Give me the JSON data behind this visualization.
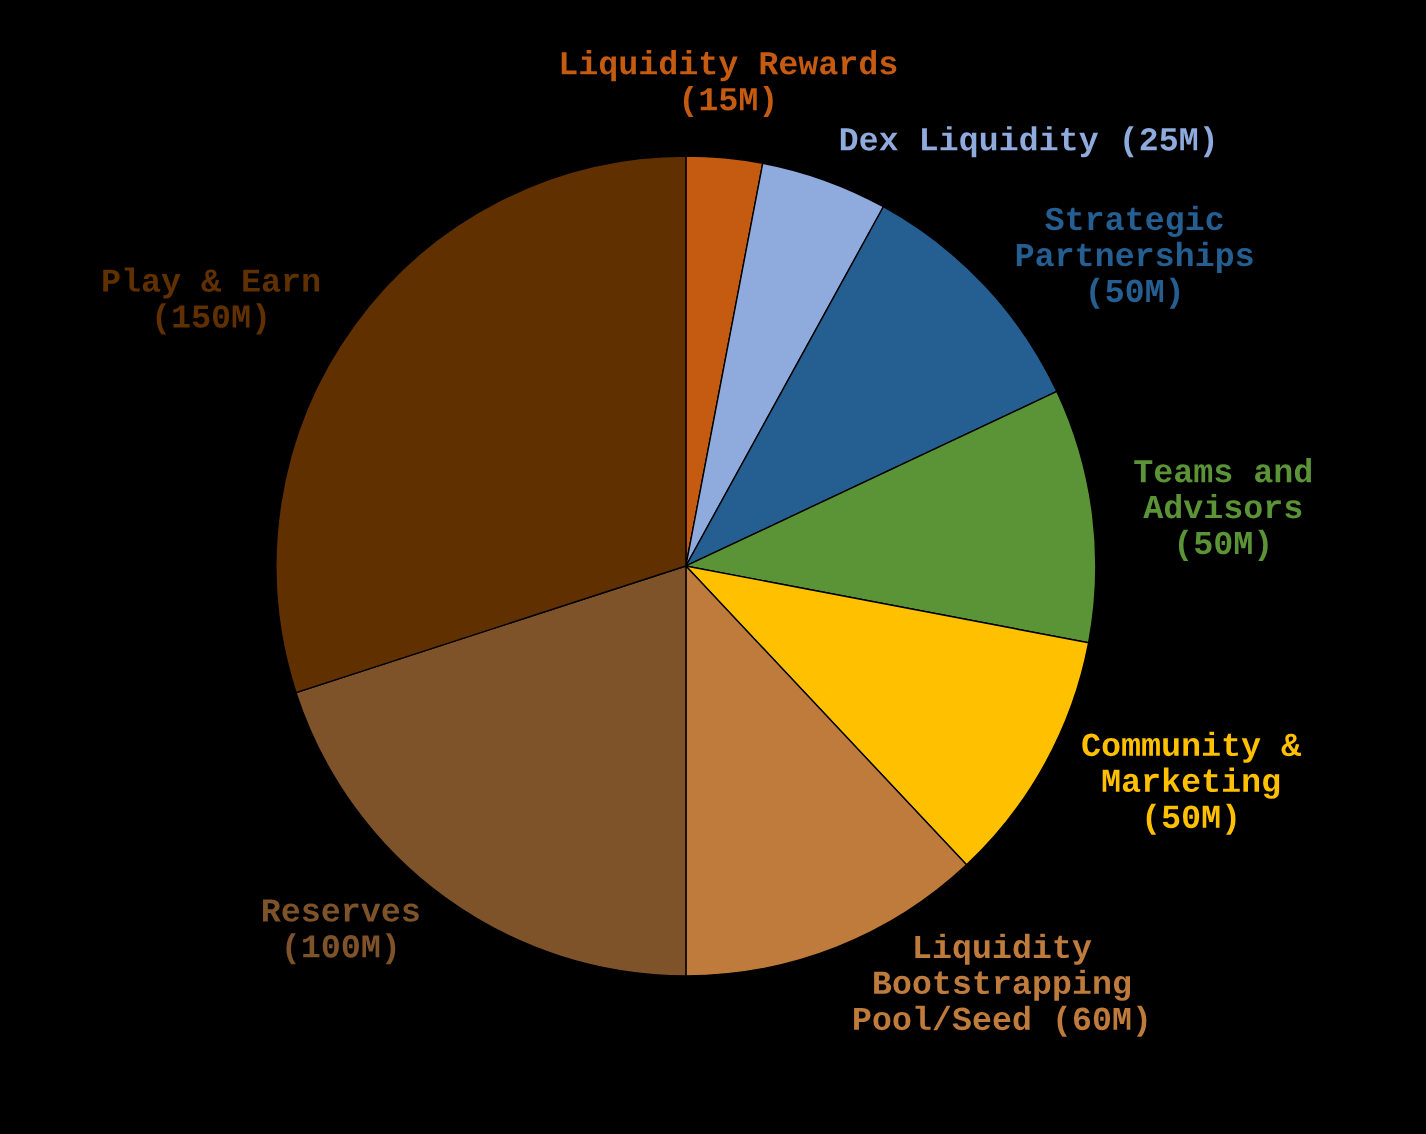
{
  "chart_data": {
    "type": "pie",
    "categories": [
      "Liquidity Rewards\n(15M)",
      "Dex Liquidity (25M)",
      "Strategic\nPartnerships\n(50M)",
      "Teams and\nAdvisors\n(50M)",
      "Community &\nMarketing\n(50M)",
      "Liquidity\nBootstrapping\nPool/Seed (60M)",
      "Reserves\n(100M)",
      "Play & Earn\n(150M)"
    ],
    "values": [
      15,
      25,
      50,
      50,
      50,
      60,
      100,
      150
    ],
    "colors": [
      "#c55a11",
      "#8faadc",
      "#255e91",
      "#5b9337",
      "#ffc000",
      "#bf7b3c",
      "#7f532a",
      "#603000"
    ]
  }
}
